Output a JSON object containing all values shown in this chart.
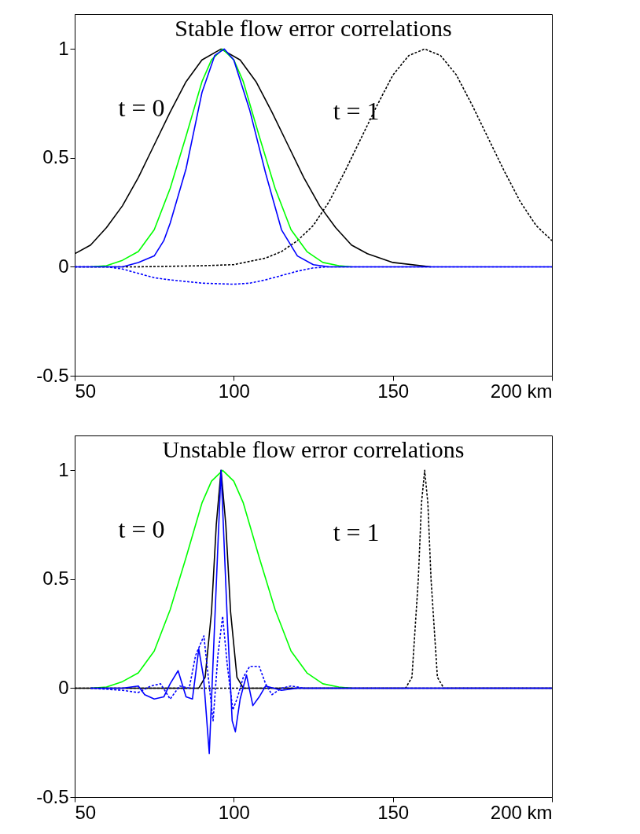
{
  "chart_data": [
    {
      "type": "line",
      "title": "Stable flow error correlations",
      "xlim": [
        50,
        200
      ],
      "ylim": [
        -0.5,
        1.16
      ],
      "xticks": [
        50,
        100,
        150,
        {
          "value": 200,
          "label": "200 km"
        }
      ],
      "yticks": [
        -0.5,
        0,
        0.5,
        1
      ],
      "grid": false,
      "annotations": [
        "t = 0",
        "t = 1"
      ],
      "series": [
        {
          "color": "#000000",
          "line_style": "solid",
          "x": [
            50,
            55,
            60,
            65,
            70,
            75,
            80,
            85,
            90,
            96,
            102,
            107,
            112,
            117,
            122,
            127,
            132,
            137,
            142,
            150,
            162
          ],
          "values": [
            0.06,
            0.1,
            0.18,
            0.28,
            0.41,
            0.56,
            0.71,
            0.85,
            0.95,
            1,
            0.95,
            0.85,
            0.71,
            0.56,
            0.41,
            0.28,
            0.18,
            0.1,
            0.06,
            0.02,
            0
          ]
        },
        {
          "color": "#000000",
          "line_style": "dashed",
          "x": [
            50,
            70,
            90,
            100,
            110,
            115,
            120,
            125,
            130,
            135,
            140,
            145,
            150,
            155,
            160,
            165,
            170,
            175,
            180,
            185,
            190,
            195,
            200
          ],
          "values": [
            0,
            0,
            0.005,
            0.01,
            0.04,
            0.07,
            0.12,
            0.19,
            0.3,
            0.44,
            0.59,
            0.74,
            0.88,
            0.97,
            1,
            0.97,
            0.88,
            0.74,
            0.59,
            0.44,
            0.3,
            0.19,
            0.12
          ]
        },
        {
          "color": "#00ff00",
          "line_style": "solid",
          "x": [
            55,
            60,
            65,
            70,
            75,
            80,
            85,
            90,
            93,
            96.5,
            100,
            103,
            108,
            113,
            118,
            123,
            128,
            133,
            137
          ],
          "values": [
            0,
            0.005,
            0.03,
            0.07,
            0.17,
            0.36,
            0.6,
            0.85,
            0.95,
            1,
            0.95,
            0.85,
            0.6,
            0.36,
            0.17,
            0.07,
            0.02,
            0.005,
            0
          ]
        },
        {
          "color": "#0000ff",
          "line_style": "dashed",
          "x": [
            50,
            60,
            65,
            70,
            75,
            80,
            90,
            100,
            105,
            110,
            115,
            120,
            125,
            130,
            200
          ],
          "values": [
            0,
            0,
            -0.01,
            -0.03,
            -0.05,
            -0.06,
            -0.075,
            -0.08,
            -0.075,
            -0.06,
            -0.04,
            -0.02,
            -0.005,
            0,
            0
          ]
        },
        {
          "color": "#0000ff",
          "line_style": "solid",
          "x": [
            50,
            65,
            70,
            75,
            78,
            80,
            85,
            90,
            94,
            97,
            100,
            105,
            110,
            115,
            120,
            125,
            130,
            200
          ],
          "values": [
            0,
            0,
            0.02,
            0.05,
            0.12,
            0.2,
            0.45,
            0.8,
            0.97,
            1,
            0.95,
            0.72,
            0.43,
            0.17,
            0.05,
            0.01,
            0,
            0
          ]
        }
      ]
    },
    {
      "type": "line",
      "title": "Unstable flow error correlations",
      "xlim": [
        50,
        200
      ],
      "ylim": [
        -0.5,
        1.16
      ],
      "xticks": [
        50,
        100,
        150,
        {
          "value": 200,
          "label": "200 km"
        }
      ],
      "yticks": [
        -0.5,
        0,
        0.5,
        1
      ],
      "grid": false,
      "annotations": [
        "t = 0",
        "t = 1"
      ],
      "series": [
        {
          "color": "#00ff00",
          "line_style": "solid",
          "x": [
            55,
            60,
            65,
            70,
            75,
            80,
            85,
            90,
            93,
            96.5,
            100,
            103,
            108,
            113,
            118,
            123,
            128,
            133,
            137
          ],
          "values": [
            0,
            0.005,
            0.03,
            0.07,
            0.17,
            0.36,
            0.6,
            0.85,
            0.95,
            1,
            0.95,
            0.85,
            0.6,
            0.36,
            0.17,
            0.07,
            0.02,
            0.005,
            0
          ]
        },
        {
          "color": "#000000",
          "line_style": "dashed",
          "x": [
            50,
            154,
            156,
            158,
            159,
            160,
            161,
            162,
            164,
            166,
            200
          ],
          "values": [
            0,
            0,
            0.05,
            0.5,
            0.85,
            1,
            0.85,
            0.5,
            0.05,
            0,
            0
          ]
        },
        {
          "color": "#000000",
          "line_style": "solid",
          "x": [
            50,
            89,
            91,
            93,
            94.5,
            96,
            97.5,
            99,
            101,
            103,
            200
          ],
          "values": [
            0,
            0,
            0.05,
            0.35,
            0.75,
            1,
            0.75,
            0.35,
            0.05,
            0,
            0
          ]
        },
        {
          "color": "#0000ff",
          "line_style": "dashed",
          "x": [
            55,
            65,
            70,
            74,
            77,
            80,
            83,
            86,
            88,
            90.6,
            92,
            93.5,
            95,
            96.5,
            98,
            99.7,
            101,
            103,
            105,
            108,
            110,
            112,
            115,
            118,
            122,
            200
          ],
          "values": [
            0,
            -0.01,
            -0.02,
            0.01,
            0.02,
            -0.05,
            0.01,
            0,
            0.15,
            0.24,
            0.05,
            -0.15,
            0.15,
            0.33,
            0.1,
            -0.1,
            -0.05,
            0.05,
            0.1,
            0.1,
            0.02,
            -0.03,
            0,
            0.01,
            0,
            0
          ]
        },
        {
          "color": "#0000ff",
          "line_style": "solid",
          "x": [
            55,
            65,
            70,
            72,
            75,
            78,
            80,
            82.5,
            85,
            87,
            89,
            90.5,
            92.3,
            94,
            96,
            98,
            99.5,
            100.5,
            102,
            104,
            106,
            108,
            110,
            115,
            120,
            200
          ],
          "values": [
            0,
            0,
            0.01,
            -0.03,
            -0.05,
            -0.04,
            0.02,
            0.08,
            -0.04,
            -0.05,
            0.18,
            0.05,
            -0.3,
            0.3,
            1,
            0.3,
            -0.15,
            -0.2,
            -0.05,
            0.06,
            -0.08,
            -0.04,
            0.01,
            -0.01,
            0,
            0
          ]
        }
      ]
    }
  ]
}
